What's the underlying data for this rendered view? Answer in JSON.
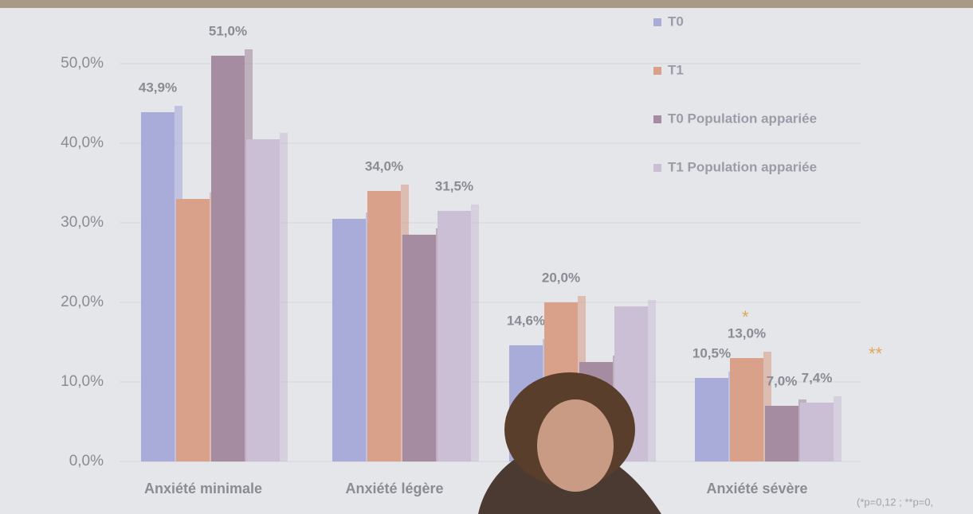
{
  "chart_data": {
    "type": "bar",
    "categories": [
      "Anxiété minimale",
      "Anxiété légère",
      null,
      "Anxiété sévère"
    ],
    "series": [
      {
        "name": "T0",
        "color": "#a9acd9",
        "values": [
          43.9,
          30.5,
          14.6,
          10.5
        ],
        "value_labels": [
          "43,9%",
          null,
          "14,6%",
          "10,5%"
        ]
      },
      {
        "name": "T1",
        "color": "#d9a08a",
        "values": [
          33,
          34.0,
          20.0,
          13.0
        ],
        "value_labels": [
          null,
          "34,0%",
          "20,0%",
          "13,0%"
        ]
      },
      {
        "name": "T0 Population appariée",
        "color": "#a68ca0",
        "values": [
          51.0,
          28.5,
          12.5,
          7.0
        ],
        "value_labels": [
          "51,0%",
          null,
          null,
          "7,0%"
        ]
      },
      {
        "name": "T1 Population appariée",
        "color": "#cbbfd6",
        "values": [
          40.5,
          31.5,
          19.5,
          7.4
        ],
        "value_labels": [
          null,
          "31,5%",
          null,
          "7,4%"
        ]
      }
    ],
    "ylim": [
      0,
      55
    ],
    "yticks": [
      {
        "value": 0,
        "label": "0,0%"
      },
      {
        "value": 10,
        "label": "10,0%"
      },
      {
        "value": 20,
        "label": "20,0%"
      },
      {
        "value": 30,
        "label": "30,0%"
      },
      {
        "value": 40,
        "label": "40,0%"
      },
      {
        "value": 50,
        "label": "50,0%"
      }
    ],
    "grid": true,
    "annotations": [
      "*",
      "**"
    ],
    "footnote": "(*p=0,12 ; **p=0,"
  }
}
